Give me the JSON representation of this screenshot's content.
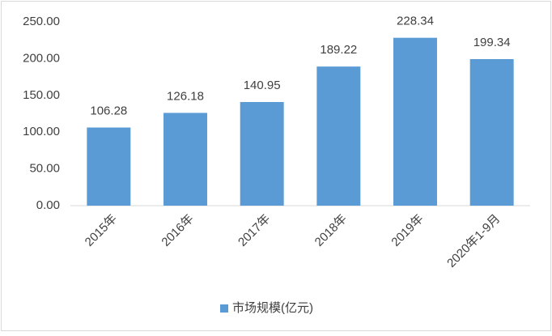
{
  "chart_data": {
    "type": "bar",
    "categories": [
      "2015年",
      "2016年",
      "2017年",
      "2018年",
      "2019年",
      "2020年1-9月"
    ],
    "series": [
      {
        "name": "市场规模(亿元)",
        "color": "#5b9bd5",
        "values": [
          106.28,
          126.18,
          140.95,
          189.22,
          228.34,
          199.34
        ]
      }
    ],
    "ylim": [
      0,
      250
    ],
    "yticks": [
      {
        "value": 0,
        "label": "0.00"
      },
      {
        "value": 50,
        "label": "50.00"
      },
      {
        "value": 100,
        "label": "100.00"
      },
      {
        "value": 150,
        "label": "150.00"
      },
      {
        "value": 200,
        "label": "200.00"
      },
      {
        "value": 250,
        "label": "250.00"
      }
    ],
    "grid": false,
    "legend": "bottom"
  }
}
